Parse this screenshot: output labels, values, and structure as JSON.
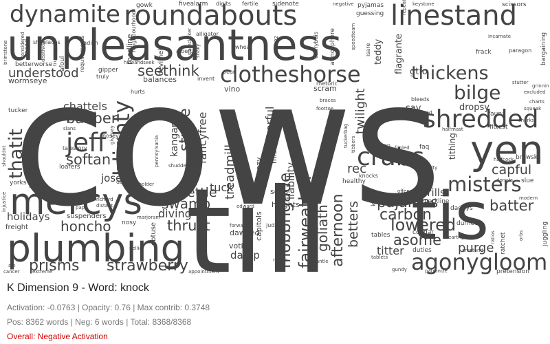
{
  "title": "K Dimension 9 - Word: knock",
  "metrics": "Activation: -0.0763 | Opacity: 0.76 | Max contrib: 0.3748",
  "counts": "Pos: 8362 words | Neg: 6 words | Total: 8368/8368",
  "overall": "Overall: Negative Activation",
  "colors": {
    "word": "#444444",
    "overall": "#d40000",
    "meta": "#777777",
    "title": "#222222"
  },
  "words": [
    "cows",
    "till",
    "tis",
    "unpleasantness",
    "plumbing",
    "roundabouts",
    "linestand",
    "mercys",
    "crabs",
    "yen",
    "agonygloom",
    "shredded",
    "clotheshorse",
    "dynamite",
    "thickens",
    "bilge",
    "jeff",
    "blighty",
    "thatit",
    "misters",
    "strawberry",
    "prisms",
    "fairweather",
    "mobbrigade",
    "afternoon",
    "goliath",
    "lowered",
    "carbon",
    "pajamas",
    "asome",
    "seethink",
    "understood",
    "babber",
    "softan",
    "chattels",
    "stuffe",
    "kangaroo",
    "fancyfree",
    "swamp",
    "nettle",
    "thrust",
    "diving",
    "honcho",
    "holidays",
    "joseph",
    "tuck",
    "treadmill",
    "cheerful",
    "twilight",
    "rec",
    "batter",
    "capful",
    "purge",
    "thrills",
    "titter",
    "betters",
    "liability",
    "damp",
    "dawned",
    "capitols",
    "voting",
    "heights",
    "crazy",
    "soda",
    "mishapen",
    "hairy",
    "sav",
    "dropsy",
    "tithing",
    "teddy",
    "gtfo",
    "atmosphere",
    "flagrante",
    "scram",
    "rhetoric",
    "vino",
    "pear",
    "invent",
    "balances",
    "hurts",
    "gipper",
    "truly",
    "hideandseek",
    "alligator",
    "wheat",
    "albert",
    "devilhell",
    "roadline",
    "neighbourhood",
    "wormseye",
    "betterworse",
    "radish",
    "shoelaces",
    "afoul",
    "requirements",
    "gowk",
    "fivealarm",
    "digits",
    "fertile",
    "sidenote",
    "negative",
    "pyjamas",
    "guessing",
    "keystone",
    "scissors",
    "repeats",
    "isare",
    "charybdis",
    "incarnate",
    "frack",
    "paragon",
    "bargaining",
    "stutter",
    "excluded",
    "grinnin",
    "charts",
    "squeak",
    "sharks",
    "fittest",
    "fauna",
    "brewski",
    "halfcock",
    "slue",
    "donuts",
    "modern",
    "juggling",
    "ratchet",
    "ratios",
    "durned",
    "earthground",
    "arestand",
    "pretension",
    "tablets",
    "gundy",
    "patronize",
    "tables",
    "cougar",
    "duties",
    "orbs",
    "frederick",
    "khazi",
    "markline",
    "daddys",
    "penalty",
    "faq",
    "python",
    "fooled",
    "excepted",
    "halfmast",
    "bleeds",
    "braces",
    "tuckerbag",
    "foottoe",
    "knocks",
    "healthy",
    "offence",
    "appointment",
    "extreme",
    "cancer",
    "ale",
    "freight",
    "nosy",
    "suspenders",
    "obtuse",
    "marjoram",
    "nellie",
    "forwards",
    "judas",
    "edward",
    "nonce",
    "mantle",
    "yorks",
    "fudges",
    "injustice",
    "shouldnt",
    "loafers",
    "talestory",
    "twos",
    "dads",
    "beholder",
    "nought",
    "papa",
    "distant",
    "richard",
    "shudder",
    "pennsylvania",
    "nosey",
    "slans",
    "givepay",
    "tucker",
    "brimstone",
    "considered",
    "unsaid",
    "deathkill",
    "truancy",
    "slamclicker",
    "snaky",
    "catch22",
    "speedteam",
    "tibbers"
  ]
}
